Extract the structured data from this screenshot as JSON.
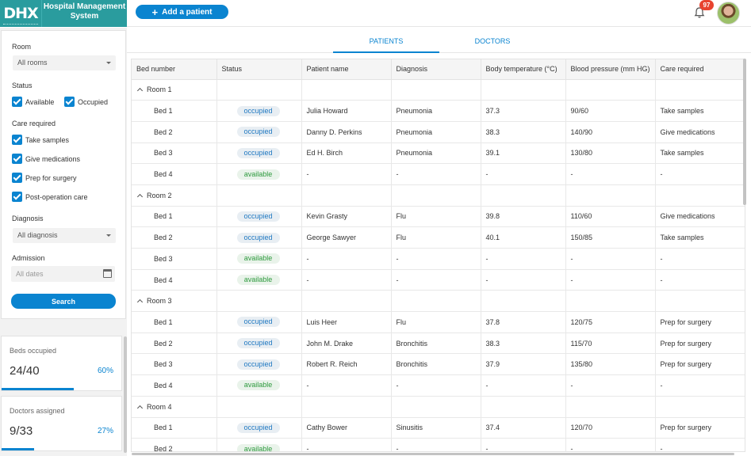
{
  "header": {
    "logo": "DHX",
    "logo_sub": "DHTMLX",
    "app_title": "Hospital Management System",
    "add_label": "Add a patient",
    "notification_count": "97",
    "accent": "#0a84d0",
    "brand": "#2a9c9e"
  },
  "filters": {
    "room_label": "Room",
    "room_value": "All rooms",
    "status_label": "Status",
    "status_available": "Available",
    "status_occupied": "Occupied",
    "care_label": "Care required",
    "care": [
      "Take samples",
      "Give medications",
      "Prep for surgery",
      "Post-operation care"
    ],
    "diagnosis_label": "Diagnosis",
    "diagnosis_value": "All diagnosis",
    "admission_label": "Admission",
    "admission_placeholder": "All dates",
    "search_label": "Search"
  },
  "stats": {
    "beds": {
      "label": "Beds occupied",
      "value": "24/40",
      "pct": "60%",
      "fraction": 0.6
    },
    "doctors": {
      "label": "Doctors assigned",
      "value": "9/33",
      "pct": "27%",
      "fraction": 0.27
    }
  },
  "tabs": [
    "PATIENTS",
    "DOCTORS"
  ],
  "table": {
    "columns": [
      "Bed number",
      "Status",
      "Patient name",
      "Diagnosis",
      "Body temperature (°C)",
      "Blood pressure (mm HG)",
      "Care required"
    ],
    "rooms": [
      {
        "name": "Room 1",
        "beds": [
          [
            "Bed 1",
            "occupied",
            "Julia Howard",
            "Pneumonia",
            "37.3",
            "90/60",
            "Take samples"
          ],
          [
            "Bed 2",
            "occupied",
            "Danny D. Perkins",
            "Pneumonia",
            "38.3",
            "140/90",
            "Give medications"
          ],
          [
            "Bed 3",
            "occupied",
            "Ed H. Birch",
            "Pneumonia",
            "39.1",
            "130/80",
            "Take samples"
          ],
          [
            "Bed 4",
            "available",
            "-",
            "-",
            "-",
            "-",
            "-"
          ]
        ]
      },
      {
        "name": "Room 2",
        "beds": [
          [
            "Bed 1",
            "occupied",
            "Kevin Grasty",
            "Flu",
            "39.8",
            "110/60",
            "Give medications"
          ],
          [
            "Bed 2",
            "occupied",
            "George Sawyer",
            "Flu",
            "40.1",
            "150/85",
            "Take samples"
          ],
          [
            "Bed 3",
            "available",
            "-",
            "-",
            "-",
            "-",
            "-"
          ],
          [
            "Bed 4",
            "available",
            "-",
            "-",
            "-",
            "-",
            "-"
          ]
        ]
      },
      {
        "name": "Room 3",
        "beds": [
          [
            "Bed 1",
            "occupied",
            "Luis Heer",
            "Flu",
            "37.8",
            "120/75",
            "Prep for surgery"
          ],
          [
            "Bed 2",
            "occupied",
            "John M. Drake",
            "Bronchitis",
            "38.3",
            "115/70",
            "Prep for surgery"
          ],
          [
            "Bed 3",
            "occupied",
            "Robert R. Reich",
            "Bronchitis",
            "37.9",
            "135/80",
            "Prep for surgery"
          ],
          [
            "Bed 4",
            "available",
            "-",
            "-",
            "-",
            "-",
            "-"
          ]
        ]
      },
      {
        "name": "Room 4",
        "beds": [
          [
            "Bed 1",
            "occupied",
            "Cathy Bower",
            "Sinusitis",
            "37.4",
            "120/70",
            "Prep for surgery"
          ],
          [
            "Bed 2",
            "available",
            "-",
            "-",
            "-",
            "-",
            "-"
          ]
        ]
      }
    ]
  }
}
